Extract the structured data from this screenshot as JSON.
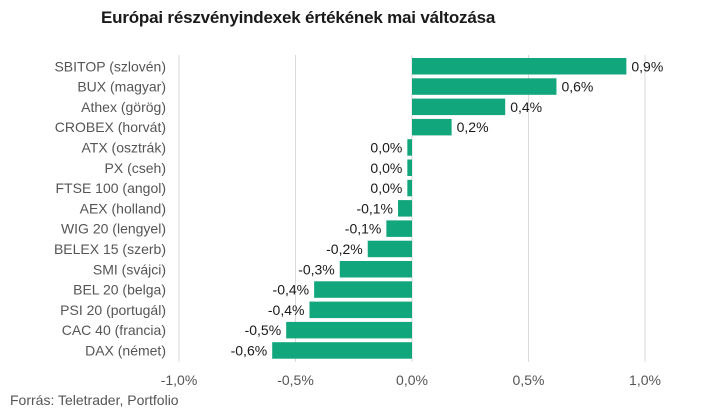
{
  "chart_data": {
    "type": "bar",
    "orientation": "horizontal",
    "title": "Európai részvényindexek értékének mai változása",
    "source": "Forrás: Teletrader, Portfolio",
    "color": "#12a67d",
    "grid": true,
    "xlim": [
      -1.0,
      1.0
    ],
    "xticks": [
      -1.0,
      -0.5,
      0.0,
      0.5,
      1.0
    ],
    "xtick_labels": [
      "-1,0%",
      "-0,5%",
      "0,0%",
      "0,5%",
      "1,0%"
    ],
    "categories": [
      "SBITOP (szlovén)",
      "BUX (magyar)",
      "Athex (görög)",
      "CROBEX (horvát)",
      "ATX (osztrák)",
      "PX (cseh)",
      "FTSE 100 (angol)",
      "AEX (holland)",
      "WIG 20 (lengyel)",
      "BELEX 15 (szerb)",
      "SMI (svájci)",
      "BEL 20 (belga)",
      "PSI 20 (portugál)",
      "CAC 40 (francia)",
      "DAX (német)"
    ],
    "values": [
      0.92,
      0.62,
      0.4,
      0.17,
      -0.02,
      -0.02,
      -0.02,
      -0.06,
      -0.11,
      -0.19,
      -0.31,
      -0.42,
      -0.44,
      -0.54,
      -0.6
    ],
    "value_labels": [
      "0,9%",
      "0,6%",
      "0,4%",
      "0,2%",
      "0,0%",
      "0,0%",
      "0,0%",
      "-0,1%",
      "-0,1%",
      "-0,2%",
      "-0,3%",
      "-0,4%",
      "-0,4%",
      "-0,5%",
      "-0,6%"
    ]
  }
}
